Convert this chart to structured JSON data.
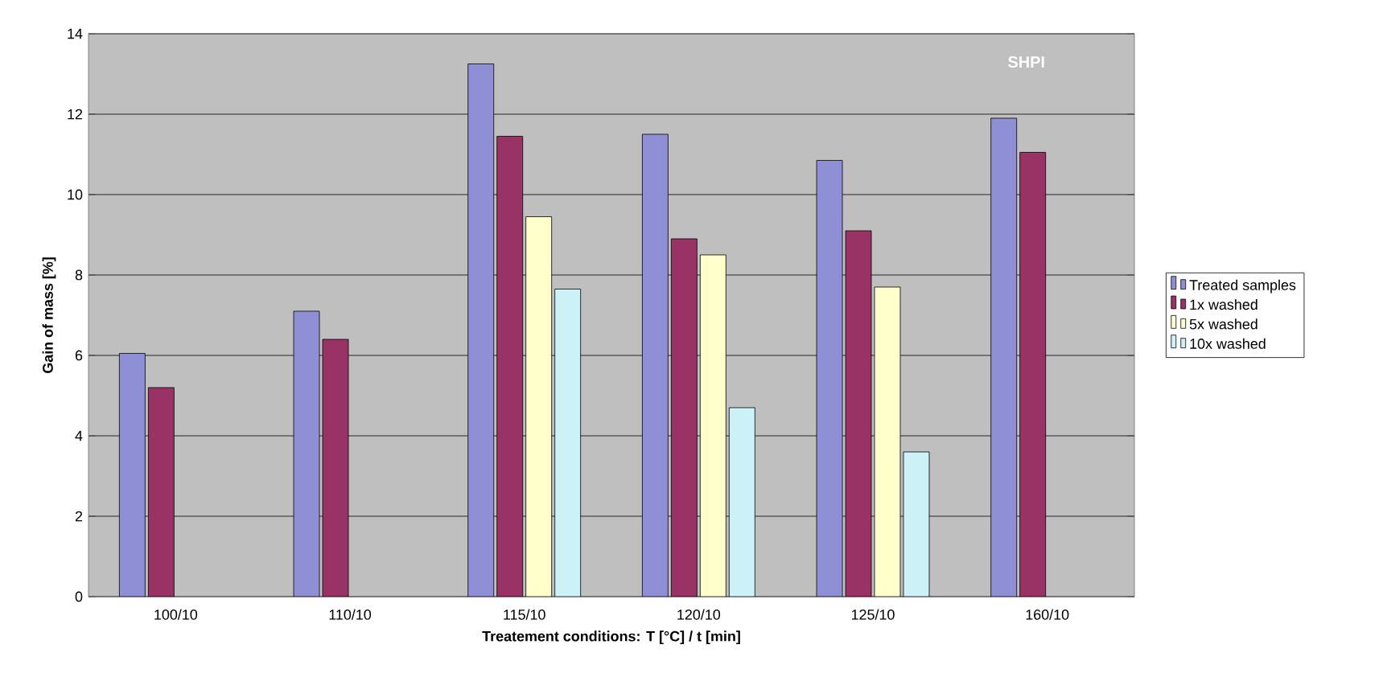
{
  "chart_data": {
    "type": "bar",
    "xlabel": "Treatement conditions: T [°C] / t [min]",
    "ylabel": "Gain of mass [%]",
    "categories": [
      "100/10",
      "110/10",
      "115/10",
      "120/10",
      "125/10",
      "160/10"
    ],
    "series": [
      {
        "name": "Treated samples",
        "color": "#8f8fd6",
        "values": [
          6.05,
          7.1,
          13.25,
          11.5,
          10.85,
          11.9
        ]
      },
      {
        "name": "1x washed",
        "color": "#993366",
        "values": [
          5.2,
          6.4,
          11.45,
          8.9,
          9.1,
          11.05
        ]
      },
      {
        "name": "5x washed",
        "color": "#ffffcc",
        "values": [
          null,
          null,
          9.45,
          8.5,
          7.7,
          null
        ]
      },
      {
        "name": "10x  washed",
        "color": "#ccf2f8",
        "values": [
          null,
          null,
          7.65,
          4.7,
          3.6,
          null
        ]
      }
    ],
    "ylim": [
      0,
      14
    ],
    "yticks": [
      0,
      2,
      4,
      6,
      8,
      10,
      12,
      14
    ],
    "grid": "y",
    "legend": "right",
    "annotations": [
      "SHPI"
    ]
  }
}
